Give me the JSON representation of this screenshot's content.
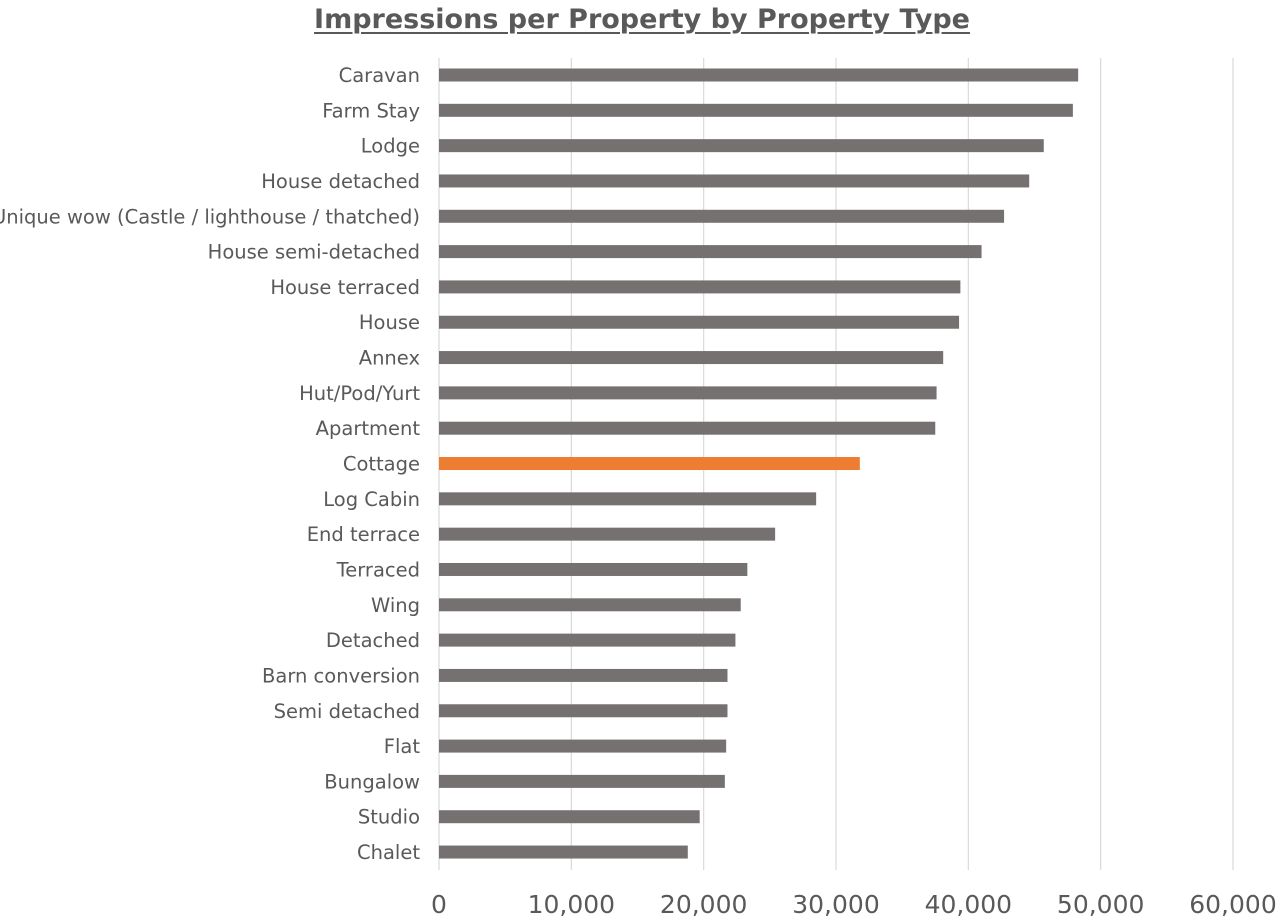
{
  "chart_data": {
    "type": "bar",
    "orientation": "horizontal",
    "title": "Impressions per Property by Property Type",
    "xlabel": "",
    "ylabel": "",
    "xlim": [
      0,
      60000
    ],
    "x_ticks": [
      "0",
      "10,000",
      "20,000",
      "30,000",
      "40,000",
      "50,000",
      "60,000"
    ],
    "grid": "vertical",
    "legend": "none",
    "categories": [
      "Caravan",
      "Farm Stay",
      "Lodge",
      "House detached",
      "Unique wow (Castle / lighthouse / thatched)",
      "House semi-detached",
      "House terraced",
      "House",
      "Annex",
      "Hut/Pod/Yurt",
      "Apartment",
      "Cottage",
      "Log Cabin",
      "End terrace",
      "Terraced",
      "Wing",
      "Detached",
      "Barn conversion",
      "Semi detached",
      "Flat",
      "Bungalow",
      "Studio",
      "Chalet"
    ],
    "values": [
      48300,
      47900,
      45700,
      44600,
      42700,
      41000,
      39400,
      39300,
      38100,
      37600,
      37500,
      31800,
      28500,
      25400,
      23300,
      22800,
      22400,
      21800,
      21800,
      21700,
      21600,
      19700,
      18800
    ],
    "highlight": "Cottage",
    "colors": {
      "bar": "#767171",
      "highlight": "#ed7d31",
      "grid": "#d9d9d9",
      "text": "#595959"
    }
  }
}
